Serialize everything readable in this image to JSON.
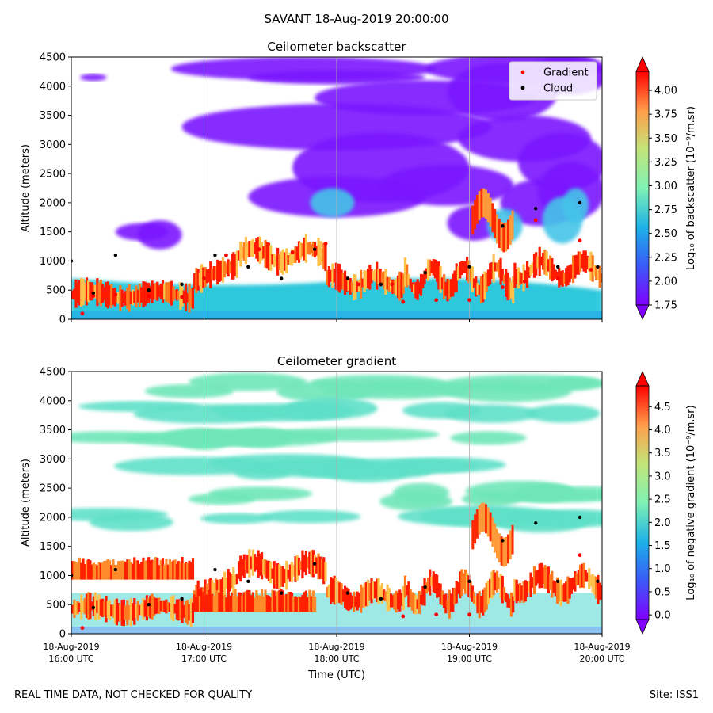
{
  "figure": {
    "title": "SAVANT 18-Aug-2019 20:00:00",
    "footer_left": "REAL TIME DATA, NOT CHECKED FOR QUALITY",
    "footer_right": "Site: ISS1",
    "x_axis": {
      "label": "Time (UTC)",
      "ticks": [
        {
          "date": "18-Aug-2019",
          "time": "16:00 UTC"
        },
        {
          "date": "18-Aug-2019",
          "time": "17:00 UTC"
        },
        {
          "date": "18-Aug-2019",
          "time": "18:00 UTC"
        },
        {
          "date": "18-Aug-2019",
          "time": "19:00 UTC"
        },
        {
          "date": "18-Aug-2019",
          "time": "20:00 UTC"
        }
      ]
    }
  },
  "chart_data": [
    {
      "type": "heatmap",
      "title": "Ceilometer backscatter",
      "ylabel": "Altitude (meters)",
      "xlabel": "Time (UTC)",
      "xlim": [
        "2019-08-18 16:00",
        "2019-08-18 20:00"
      ],
      "ylim": [
        0,
        4500
      ],
      "yticks": [
        0,
        500,
        1000,
        1500,
        2000,
        2500,
        3000,
        3500,
        4000,
        4500
      ],
      "grid": "vertical lines at hourly ticks",
      "colormap": "rainbow",
      "colorbar": {
        "label": "Log₁₀ of backscatter (10⁻⁹/m.sr)",
        "range": [
          1.75,
          4.2
        ],
        "ticks": [
          "1.75",
          "2.00",
          "2.25",
          "2.50",
          "2.75",
          "3.00",
          "3.25",
          "3.50",
          "3.75",
          "4.00"
        ],
        "extend": "both"
      },
      "legend": {
        "placement": "top-right",
        "entries": [
          {
            "label": "Gradient",
            "color": "#ff0000"
          },
          {
            "label": "Cloud",
            "color": "#000000"
          }
        ]
      },
      "gradient_points": [
        {
          "t": "16:05",
          "alt": 100
        },
        {
          "t": "16:10",
          "alt": 400
        },
        {
          "t": "16:20",
          "alt": 420
        },
        {
          "t": "16:35",
          "alt": 400
        },
        {
          "t": "16:50",
          "alt": 380
        },
        {
          "t": "17:00",
          "alt": 700
        },
        {
          "t": "17:10",
          "alt": 1100
        },
        {
          "t": "17:25",
          "alt": 1200
        },
        {
          "t": "17:40",
          "alt": 1150
        },
        {
          "t": "17:55",
          "alt": 1300
        },
        {
          "t": "18:10",
          "alt": 600
        },
        {
          "t": "18:25",
          "alt": 600
        },
        {
          "t": "18:30",
          "alt": 300
        },
        {
          "t": "18:45",
          "alt": 330
        },
        {
          "t": "19:00",
          "alt": 330
        },
        {
          "t": "19:15",
          "alt": 550
        },
        {
          "t": "19:25",
          "alt": 650
        },
        {
          "t": "19:30",
          "alt": 1700
        },
        {
          "t": "19:40",
          "alt": 700
        },
        {
          "t": "19:50",
          "alt": 1350
        },
        {
          "t": "19:55",
          "alt": 850
        }
      ],
      "cloud_points": [
        {
          "t": "16:00",
          "alt": 1000
        },
        {
          "t": "16:10",
          "alt": 450
        },
        {
          "t": "16:20",
          "alt": 1100
        },
        {
          "t": "16:35",
          "alt": 500
        },
        {
          "t": "16:50",
          "alt": 600
        },
        {
          "t": "17:05",
          "alt": 1100
        },
        {
          "t": "17:20",
          "alt": 900
        },
        {
          "t": "17:35",
          "alt": 700
        },
        {
          "t": "17:50",
          "alt": 1200
        },
        {
          "t": "18:05",
          "alt": 700
        },
        {
          "t": "18:20",
          "alt": 600
        },
        {
          "t": "18:40",
          "alt": 800
        },
        {
          "t": "19:00",
          "alt": 900
        },
        {
          "t": "19:15",
          "alt": 1600
        },
        {
          "t": "19:30",
          "alt": 1900
        },
        {
          "t": "19:40",
          "alt": 900
        },
        {
          "t": "19:50",
          "alt": 2000
        },
        {
          "t": "19:58",
          "alt": 900
        }
      ]
    },
    {
      "type": "heatmap",
      "title": "Ceilometer gradient",
      "ylabel": "Altitude (meters)",
      "xlabel": "Time (UTC)",
      "xlim": [
        "2019-08-18 16:00",
        "2019-08-18 20:00"
      ],
      "ylim": [
        0,
        4500
      ],
      "yticks": [
        0,
        500,
        1000,
        1500,
        2000,
        2500,
        3000,
        3500,
        4000,
        4500
      ],
      "grid": "vertical lines at hourly ticks",
      "colormap": "rainbow",
      "colorbar": {
        "label": "Log₁₀ of negative gradient (10⁻⁹/m.sr)",
        "range": [
          -0.1,
          4.95
        ],
        "ticks": [
          "0.0",
          "0.5",
          "1.0",
          "1.5",
          "2.0",
          "2.5",
          "3.0",
          "3.5",
          "4.0",
          "4.5"
        ],
        "extend": "both"
      },
      "cloud_points": [
        {
          "t": "16:00",
          "alt": 1000
        },
        {
          "t": "16:10",
          "alt": 450
        },
        {
          "t": "16:20",
          "alt": 1100
        },
        {
          "t": "16:35",
          "alt": 500
        },
        {
          "t": "16:50",
          "alt": 600
        },
        {
          "t": "17:05",
          "alt": 1100
        },
        {
          "t": "17:20",
          "alt": 900
        },
        {
          "t": "17:35",
          "alt": 700
        },
        {
          "t": "17:50",
          "alt": 1200
        },
        {
          "t": "18:05",
          "alt": 700
        },
        {
          "t": "18:20",
          "alt": 600
        },
        {
          "t": "18:40",
          "alt": 800
        },
        {
          "t": "19:00",
          "alt": 900
        },
        {
          "t": "19:15",
          "alt": 1600
        },
        {
          "t": "19:30",
          "alt": 1900
        },
        {
          "t": "19:40",
          "alt": 900
        },
        {
          "t": "19:50",
          "alt": 2000
        },
        {
          "t": "19:58",
          "alt": 900
        }
      ],
      "gradient_points": [
        {
          "t": "16:05",
          "alt": 100
        },
        {
          "t": "18:30",
          "alt": 300
        },
        {
          "t": "18:45",
          "alt": 330
        },
        {
          "t": "19:00",
          "alt": 330
        },
        {
          "t": "19:50",
          "alt": 1350
        }
      ]
    }
  ]
}
